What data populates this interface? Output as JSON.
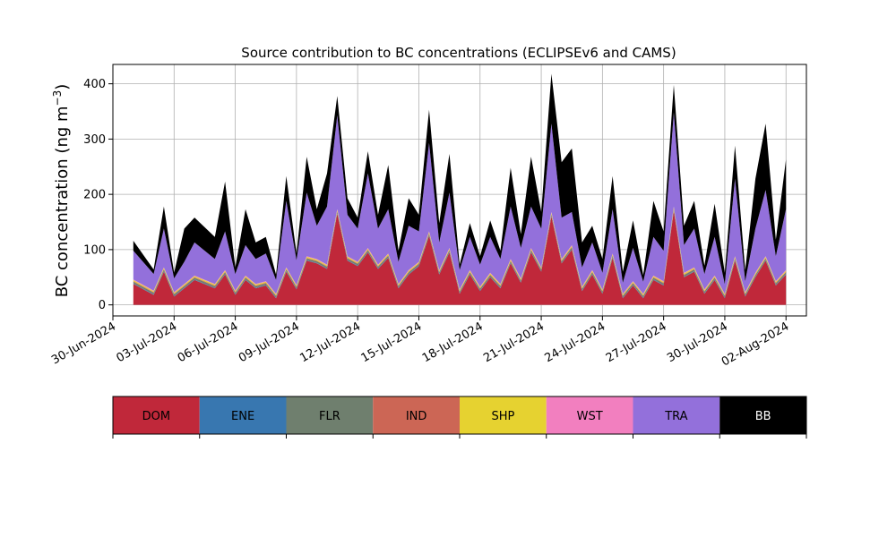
{
  "chart_data": {
    "type": "area",
    "stacked": true,
    "title": "Source contribution to BC concentrations (ECLIPSEv6 and CAMS)",
    "ylabel": "BC concentration (ng m",
    "ylabel_sup": "−3",
    "ylabel_close": ")",
    "xlabel": "",
    "ylim": [
      -20,
      435
    ],
    "xlim": [
      "2024-06-30",
      "2024-08-03"
    ],
    "grid": true,
    "y_ticks": [
      0,
      100,
      200,
      300,
      400
    ],
    "x_ticks": [
      "30-Jun-2024",
      "03-Jul-2024",
      "06-Jul-2024",
      "09-Jul-2024",
      "12-Jul-2024",
      "15-Jul-2024",
      "18-Jul-2024",
      "21-Jul-2024",
      "24-Jul-2024",
      "27-Jul-2024",
      "30-Jul-2024",
      "02-Aug-2024"
    ],
    "legend_position": "below",
    "series": [
      {
        "name": "DOM",
        "color": "#c0283a",
        "points": [
          [
            "2024-07-01",
            38
          ],
          [
            "2024-07-02",
            18
          ],
          [
            "2024-07-02 12:00",
            60
          ],
          [
            "2024-07-03",
            15
          ],
          [
            "2024-07-03 12:00",
            30
          ],
          [
            "2024-07-04",
            45
          ],
          [
            "2024-07-05",
            30
          ],
          [
            "2024-07-05 12:00",
            55
          ],
          [
            "2024-07-06",
            18
          ],
          [
            "2024-07-06 12:00",
            45
          ],
          [
            "2024-07-07",
            30
          ],
          [
            "2024-07-07 12:00",
            35
          ],
          [
            "2024-07-08",
            12
          ],
          [
            "2024-07-08 12:00",
            60
          ],
          [
            "2024-07-09",
            28
          ],
          [
            "2024-07-09 12:00",
            80
          ],
          [
            "2024-07-10",
            75
          ],
          [
            "2024-07-10 12:00",
            65
          ],
          [
            "2024-07-11",
            165
          ],
          [
            "2024-07-11 12:00",
            80
          ],
          [
            "2024-07-12",
            70
          ],
          [
            "2024-07-12 12:00",
            95
          ],
          [
            "2024-07-13",
            65
          ],
          [
            "2024-07-13 12:00",
            85
          ],
          [
            "2024-07-14",
            30
          ],
          [
            "2024-07-14 12:00",
            55
          ],
          [
            "2024-07-15",
            70
          ],
          [
            "2024-07-15 12:00",
            125
          ],
          [
            "2024-07-16",
            55
          ],
          [
            "2024-07-16 12:00",
            95
          ],
          [
            "2024-07-17",
            20
          ],
          [
            "2024-07-17 12:00",
            55
          ],
          [
            "2024-07-18",
            25
          ],
          [
            "2024-07-18 12:00",
            50
          ],
          [
            "2024-07-19",
            30
          ],
          [
            "2024-07-19 12:00",
            75
          ],
          [
            "2024-07-20",
            40
          ],
          [
            "2024-07-20 12:00",
            95
          ],
          [
            "2024-07-21",
            60
          ],
          [
            "2024-07-21 12:00",
            160
          ],
          [
            "2024-07-22",
            75
          ],
          [
            "2024-07-22 12:00",
            100
          ],
          [
            "2024-07-23",
            25
          ],
          [
            "2024-07-23 12:00",
            55
          ],
          [
            "2024-07-24",
            20
          ],
          [
            "2024-07-24 12:00",
            85
          ],
          [
            "2024-07-25",
            12
          ],
          [
            "2024-07-25 12:00",
            35
          ],
          [
            "2024-07-26",
            12
          ],
          [
            "2024-07-26 12:00",
            45
          ],
          [
            "2024-07-27",
            35
          ],
          [
            "2024-07-27 12:00",
            170
          ],
          [
            "2024-07-28",
            50
          ],
          [
            "2024-07-28 12:00",
            60
          ],
          [
            "2024-07-29",
            20
          ],
          [
            "2024-07-29 12:00",
            45
          ],
          [
            "2024-07-30",
            12
          ],
          [
            "2024-07-30 12:00",
            80
          ],
          [
            "2024-07-31",
            15
          ],
          [
            "2024-07-31 12:00",
            50
          ],
          [
            "2024-08-01",
            80
          ],
          [
            "2024-08-01 12:00",
            35
          ],
          [
            "2024-08-02",
            55
          ]
        ]
      },
      {
        "name": "ENE",
        "color": "#3877b0",
        "points": [
          [
            "2024-07-01",
            1
          ],
          [
            "2024-08-02",
            1
          ]
        ]
      },
      {
        "name": "FLR",
        "color": "#6f7f6e",
        "points": [
          [
            "2024-07-01",
            3
          ],
          [
            "2024-08-02",
            3
          ]
        ]
      },
      {
        "name": "IND",
        "color": "#cc6655",
        "points": [
          [
            "2024-07-01",
            1
          ],
          [
            "2024-08-02",
            1
          ]
        ]
      },
      {
        "name": "SHP",
        "color": "#e6d230",
        "points": [
          [
            "2024-07-01",
            2
          ],
          [
            "2024-08-02",
            2
          ]
        ]
      },
      {
        "name": "WST",
        "color": "#f27fbf",
        "points": [
          [
            "2024-07-01",
            1
          ],
          [
            "2024-08-02",
            1
          ]
        ]
      },
      {
        "name": "TRA",
        "color": "#9370db",
        "points": [
          [
            "2024-07-01",
            52
          ],
          [
            "2024-07-02",
            30
          ],
          [
            "2024-07-02 12:00",
            70
          ],
          [
            "2024-07-03",
            25
          ],
          [
            "2024-07-03 12:00",
            40
          ],
          [
            "2024-07-04",
            60
          ],
          [
            "2024-07-05",
            45
          ],
          [
            "2024-07-05 12:00",
            70
          ],
          [
            "2024-07-06",
            30
          ],
          [
            "2024-07-06 12:00",
            55
          ],
          [
            "2024-07-07",
            45
          ],
          [
            "2024-07-07 12:00",
            50
          ],
          [
            "2024-07-08",
            25
          ],
          [
            "2024-07-08 12:00",
            120
          ],
          [
            "2024-07-09",
            45
          ],
          [
            "2024-07-09 12:00",
            115
          ],
          [
            "2024-07-10",
            60
          ],
          [
            "2024-07-10 12:00",
            105
          ],
          [
            "2024-07-11",
            170
          ],
          [
            "2024-07-11 12:00",
            75
          ],
          [
            "2024-07-12",
            60
          ],
          [
            "2024-07-12 12:00",
            135
          ],
          [
            "2024-07-13",
            65
          ],
          [
            "2024-07-13 12:00",
            80
          ],
          [
            "2024-07-14",
            40
          ],
          [
            "2024-07-14 12:00",
            80
          ],
          [
            "2024-07-15",
            55
          ],
          [
            "2024-07-15 12:00",
            160
          ],
          [
            "2024-07-16",
            50
          ],
          [
            "2024-07-16 12:00",
            100
          ],
          [
            "2024-07-17",
            35
          ],
          [
            "2024-07-17 12:00",
            60
          ],
          [
            "2024-07-18",
            40
          ],
          [
            "2024-07-18 12:00",
            65
          ],
          [
            "2024-07-19",
            45
          ],
          [
            "2024-07-19 12:00",
            95
          ],
          [
            "2024-07-20",
            55
          ],
          [
            "2024-07-20 12:00",
            75
          ],
          [
            "2024-07-21",
            70
          ],
          [
            "2024-07-21 12:00",
            160
          ],
          [
            "2024-07-22",
            75
          ],
          [
            "2024-07-22 12:00",
            60
          ],
          [
            "2024-07-23",
            35
          ],
          [
            "2024-07-23 12:00",
            50
          ],
          [
            "2024-07-24",
            30
          ],
          [
            "2024-07-24 12:00",
            80
          ],
          [
            "2024-07-25",
            20
          ],
          [
            "2024-07-25 12:00",
            60
          ],
          [
            "2024-07-26",
            22
          ],
          [
            "2024-07-26 12:00",
            70
          ],
          [
            "2024-07-27",
            55
          ],
          [
            "2024-07-27 12:00",
            170
          ],
          [
            "2024-07-28",
            50
          ],
          [
            "2024-07-28 12:00",
            70
          ],
          [
            "2024-07-29",
            28
          ],
          [
            "2024-07-29 12:00",
            70
          ],
          [
            "2024-07-30",
            18
          ],
          [
            "2024-07-30 12:00",
            140
          ],
          [
            "2024-07-31",
            20
          ],
          [
            "2024-07-31 12:00",
            80
          ],
          [
            "2024-08-01",
            120
          ],
          [
            "2024-08-01 12:00",
            45
          ],
          [
            "2024-08-02",
            110
          ]
        ]
      },
      {
        "name": "BB",
        "color": "#000000",
        "points": [
          [
            "2024-07-01",
            18
          ],
          [
            "2024-07-02",
            8
          ],
          [
            "2024-07-02 12:00",
            40
          ],
          [
            "2024-07-03",
            10
          ],
          [
            "2024-07-03 12:00",
            60
          ],
          [
            "2024-07-04",
            45
          ],
          [
            "2024-07-05",
            40
          ],
          [
            "2024-07-05 12:00",
            90
          ],
          [
            "2024-07-06",
            12
          ],
          [
            "2024-07-06 12:00",
            65
          ],
          [
            "2024-07-07",
            30
          ],
          [
            "2024-07-07 12:00",
            30
          ],
          [
            "2024-07-08",
            10
          ],
          [
            "2024-07-08 12:00",
            45
          ],
          [
            "2024-07-09",
            12
          ],
          [
            "2024-07-09 12:00",
            65
          ],
          [
            "2024-07-10",
            30
          ],
          [
            "2024-07-10 12:00",
            60
          ],
          [
            "2024-07-11",
            35
          ],
          [
            "2024-07-11 12:00",
            30
          ],
          [
            "2024-07-12",
            20
          ],
          [
            "2024-07-12 12:00",
            40
          ],
          [
            "2024-07-13",
            25
          ],
          [
            "2024-07-13 12:00",
            80
          ],
          [
            "2024-07-14",
            20
          ],
          [
            "2024-07-14 12:00",
            50
          ],
          [
            "2024-07-15",
            30
          ],
          [
            "2024-07-15 12:00",
            60
          ],
          [
            "2024-07-16",
            35
          ],
          [
            "2024-07-16 12:00",
            70
          ],
          [
            "2024-07-17",
            10
          ],
          [
            "2024-07-17 12:00",
            25
          ],
          [
            "2024-07-18",
            15
          ],
          [
            "2024-07-18 12:00",
            30
          ],
          [
            "2024-07-19",
            15
          ],
          [
            "2024-07-19 12:00",
            70
          ],
          [
            "2024-07-20",
            25
          ],
          [
            "2024-07-20 12:00",
            90
          ],
          [
            "2024-07-21",
            30
          ],
          [
            "2024-07-21 12:00",
            90
          ],
          [
            "2024-07-22",
            100
          ],
          [
            "2024-07-22 12:00",
            115
          ],
          [
            "2024-07-23",
            45
          ],
          [
            "2024-07-23 12:00",
            30
          ],
          [
            "2024-07-24",
            25
          ],
          [
            "2024-07-24 12:00",
            60
          ],
          [
            "2024-07-25",
            20
          ],
          [
            "2024-07-25 12:00",
            50
          ],
          [
            "2024-07-26",
            12
          ],
          [
            "2024-07-26 12:00",
            65
          ],
          [
            "2024-07-27",
            35
          ],
          [
            "2024-07-27 12:00",
            50
          ],
          [
            "2024-07-28",
            35
          ],
          [
            "2024-07-28 12:00",
            50
          ],
          [
            "2024-07-29",
            15
          ],
          [
            "2024-07-29 12:00",
            60
          ],
          [
            "2024-07-30",
            20
          ],
          [
            "2024-07-30 12:00",
            60
          ],
          [
            "2024-07-31",
            20
          ],
          [
            "2024-07-31 12:00",
            90
          ],
          [
            "2024-08-01",
            120
          ],
          [
            "2024-08-01 12:00",
            30
          ],
          [
            "2024-08-02",
            90
          ]
        ]
      }
    ]
  }
}
